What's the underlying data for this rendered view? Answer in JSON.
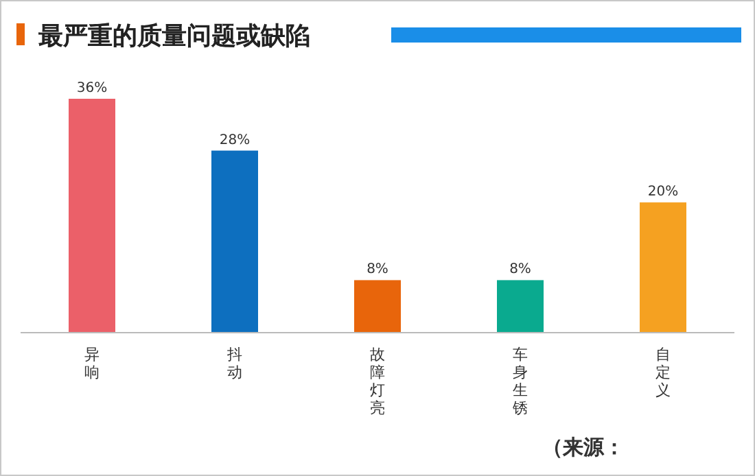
{
  "chart_data": {
    "type": "bar",
    "title": "最严重的质量问题或缺陷",
    "categories": [
      "异响",
      "抖动",
      "故障灯亮",
      "车身生锈",
      "自定义"
    ],
    "values": [
      36,
      28,
      8,
      8,
      20
    ],
    "colors": [
      "#eb6069",
      "#0d6fbf",
      "#e8650b",
      "#0aaa8f",
      "#f5a121"
    ],
    "value_labels": [
      "36%",
      "28%",
      "8%",
      "8%",
      "20%"
    ],
    "annotations": [
      "（来源："
    ]
  }
}
